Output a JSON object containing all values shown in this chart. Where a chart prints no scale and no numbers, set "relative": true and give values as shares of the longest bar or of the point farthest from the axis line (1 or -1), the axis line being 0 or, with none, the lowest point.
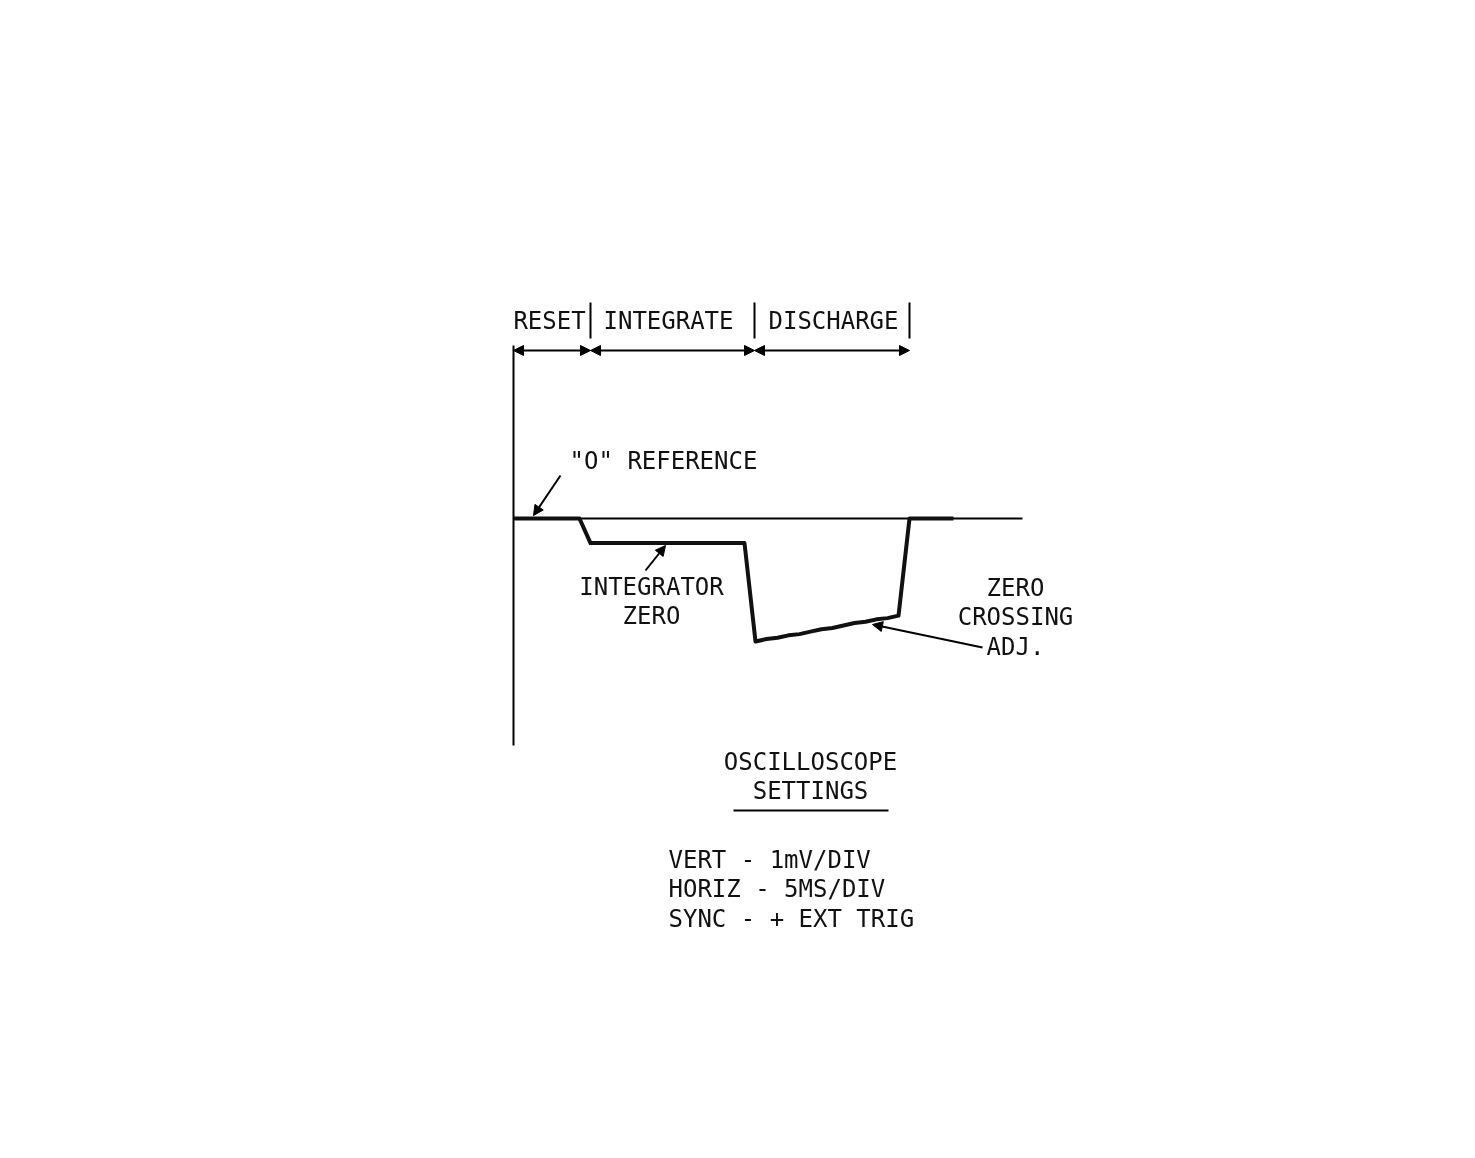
{
  "chart_data": {
    "type": "line",
    "relative": true,
    "color": "#111111",
    "categories": [
      null,
      null,
      null,
      null,
      null,
      null,
      null,
      null,
      null,
      null,
      null,
      null,
      null,
      null,
      null,
      null,
      null,
      null,
      null,
      null,
      null,
      null,
      null,
      null,
      null,
      null,
      null,
      null,
      null,
      null,
      null,
      null,
      null,
      null,
      null,
      null,
      null,
      null,
      null,
      null,
      null
    ],
    "values": [
      0,
      0,
      0,
      0,
      0,
      0,
      0,
      -0.2,
      -0.2,
      -0.2,
      -0.2,
      -0.2,
      -0.2,
      -0.2,
      -0.2,
      -0.2,
      -0.2,
      -0.2,
      -0.2,
      -0.2,
      -0.2,
      -0.2,
      -1,
      -0.98,
      -0.97,
      -0.95,
      -0.94,
      -0.92,
      -0.9,
      -0.89,
      -0.87,
      -0.85,
      -0.84,
      -0.82,
      -0.81,
      -0.79,
      0,
      0,
      0,
      0,
      0
    ],
    "annotations": [
      "RESET",
      "INTEGRATE",
      "DISCHARGE",
      "\"O\" REFERENCE",
      "INTEGRATOR\nZERO",
      "ZERO\nCROSSING\nADJ.",
      "OSCILLOSCOPE\nSETTINGS",
      "VERT  - 1mV/DIV\nHORIZ - 5MS/DIV\nSYNC  - + EXT TRIG"
    ]
  }
}
